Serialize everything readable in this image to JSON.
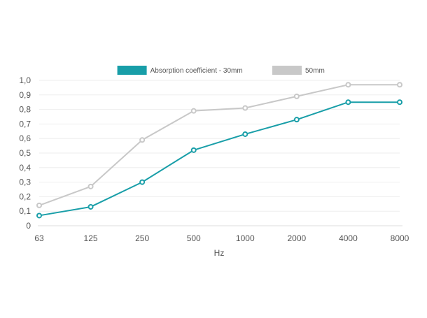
{
  "chart_data": {
    "type": "line",
    "categories": [
      "63",
      "125",
      "250",
      "500",
      "1000",
      "2000",
      "4000",
      "8000"
    ],
    "series": [
      {
        "name": "Absorption coefficient - 30mm",
        "color": "#189ea8",
        "values": [
          0.07,
          0.13,
          0.3,
          0.52,
          0.63,
          0.73,
          0.85,
          0.85
        ]
      },
      {
        "name": "50mm",
        "color": "#c8c8c8",
        "values": [
          0.14,
          0.27,
          0.59,
          0.79,
          0.81,
          0.89,
          0.97,
          0.97
        ]
      }
    ],
    "title": "",
    "xlabel": "Hz",
    "ylabel": "",
    "ylim": [
      0,
      1
    ],
    "yticks": [
      "0",
      "0,1",
      "0,2",
      "0,3",
      "0,4",
      "0,5",
      "0,6",
      "0,7",
      "0,8",
      "0,9",
      "1,0"
    ],
    "grid": true,
    "legend_position": "top-center"
  }
}
